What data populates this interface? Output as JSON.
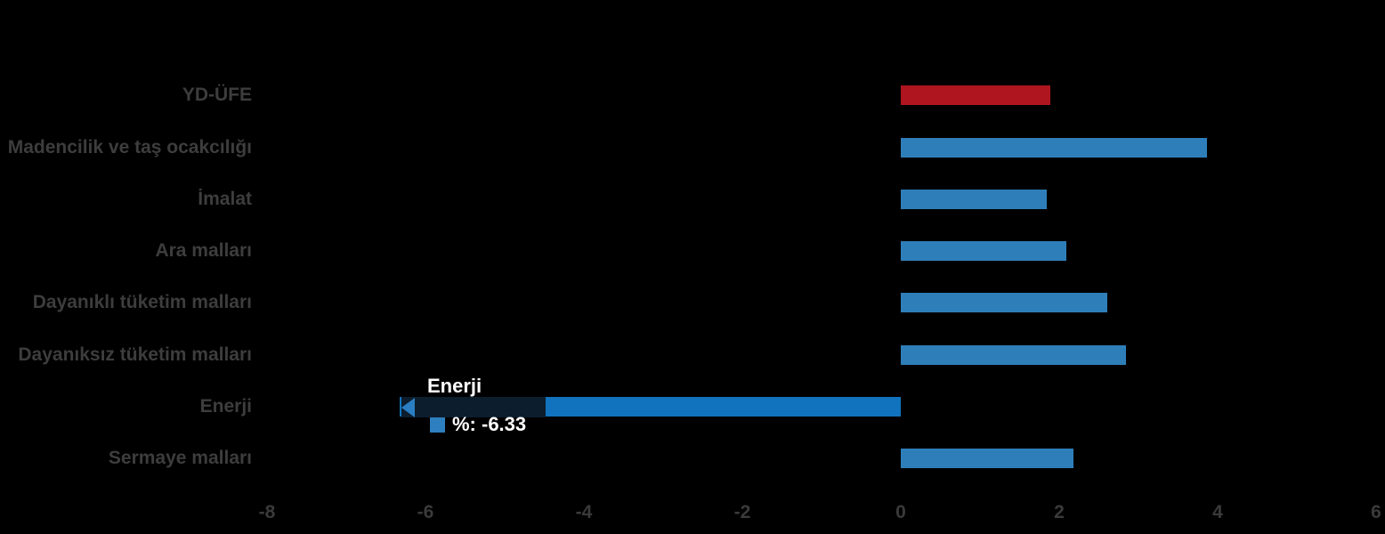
{
  "page": {
    "background_color": "#000000",
    "label_color": "#3D3D3D",
    "tick_color": "#3A3A3A"
  },
  "chart_data": {
    "type": "bar",
    "orientation": "horizontal",
    "title": "",
    "xlabel": "",
    "ylabel": "",
    "categories": [
      "YD-ÜFE",
      "Madencilik ve taş ocakcılığı",
      "İmalat",
      "Ara malları",
      "Dayanıklı tüketim malları",
      "Dayanıksız tüketim malları",
      "Enerji",
      "Sermaye malları"
    ],
    "values": [
      1.89,
      3.86,
      1.84,
      2.09,
      2.61,
      2.84,
      -6.33,
      2.18
    ],
    "value_unit": "%",
    "bar_colors": [
      "#AE151E",
      "#2E7FB9",
      "#2E7FB9",
      "#2E7FB9",
      "#2E7FB9",
      "#2E7FB9",
      "#1173BD",
      "#2E7FB9"
    ],
    "xlim": [
      -8,
      6
    ],
    "x_ticks": [
      -8,
      -6,
      -4,
      -2,
      0,
      2,
      4,
      6
    ],
    "grid": false,
    "legend_position": "none",
    "hovered_category": "Enerji"
  },
  "tooltip": {
    "title": "Enerji",
    "value_label": "%: -6.33",
    "swatch_color": "#2E7FBF",
    "backdrop_color": "#0C1D2D",
    "pointer_color": "#2B7EC1"
  }
}
